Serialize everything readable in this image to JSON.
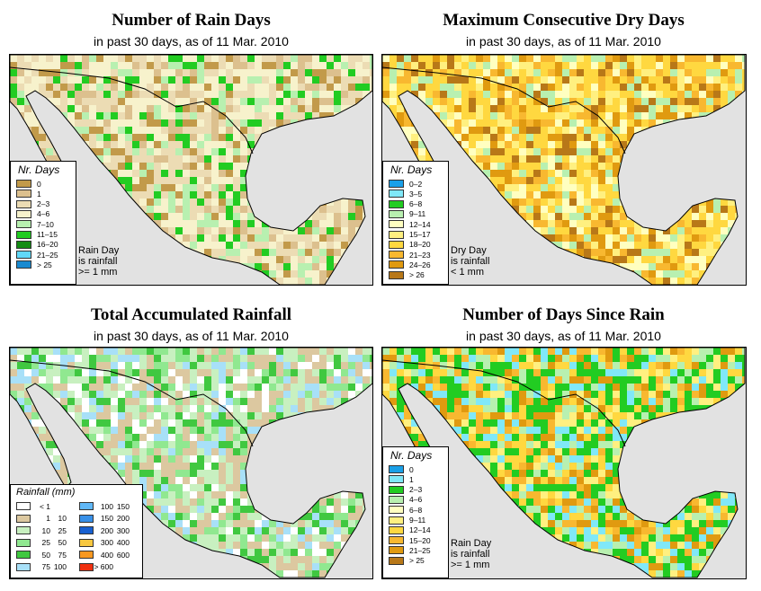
{
  "maps": [
    {
      "title": "Number of Rain Days",
      "subtitle": "in past 30 days, as of  11 Mar. 2010",
      "legend_title": "Nr. Days",
      "legend": [
        {
          "label": "0",
          "color": "#c29a4a"
        },
        {
          "label": "1",
          "color": "#dcc08e"
        },
        {
          "label": "2–3",
          "color": "#ecdcb4"
        },
        {
          "label": "4–6",
          "color": "#f7f2cc"
        },
        {
          "label": "7–10",
          "color": "#b8f0b0"
        },
        {
          "label": "11–15",
          "color": "#22cc22"
        },
        {
          "label": "16–20",
          "color": "#148c14"
        },
        {
          "label": "21–25",
          "color": "#60d8f8"
        },
        {
          "label": "> 25",
          "color": "#1a8ad0"
        }
      ],
      "note": [
        "Rain Day",
        "is rainfall",
        ">= 1 mm"
      ],
      "palette": [
        "#f7f2cc",
        "#ecdcb4",
        "#dcc08e",
        "#f7f2cc",
        "#ecdcb4",
        "#c29a4a",
        "#b8f0b0",
        "#22cc22"
      ]
    },
    {
      "title": "Maximum Consecutive Dry Days",
      "subtitle": "in past 30 days, as of  11 Mar. 2010",
      "legend_title": "Nr. Days",
      "legend": [
        {
          "label": "0–2",
          "color": "#1aa0e8"
        },
        {
          "label": "3–5",
          "color": "#80e8f8"
        },
        {
          "label": "6–8",
          "color": "#22cc22"
        },
        {
          "label": "9–11",
          "color": "#b8f0b0"
        },
        {
          "label": "12–14",
          "color": "#ffffc0"
        },
        {
          "label": "15–17",
          "color": "#fff080"
        },
        {
          "label": "18–20",
          "color": "#ffd840"
        },
        {
          "label": "21–23",
          "color": "#f8b830"
        },
        {
          "label": "24–26",
          "color": "#e09a10"
        },
        {
          "label": "> 26",
          "color": "#b87818"
        }
      ],
      "note": [
        "Dry Day",
        "is rainfall",
        "< 1 mm"
      ],
      "palette": [
        "#ffd840",
        "#f8b830",
        "#fff080",
        "#ffd840",
        "#e09a10",
        "#ffffc0",
        "#b87818",
        "#b8f0b0"
      ]
    },
    {
      "title": "Total Accumulated Rainfall",
      "subtitle": "in past 30 days, as of  11 Mar. 2010",
      "legend_title": "Rainfall (mm)",
      "rain_legend": [
        {
          "lo": "< 1",
          "hi": "",
          "color": "#ffffff"
        },
        {
          "lo": "1",
          "hi": "10",
          "color": "#dcc8a0"
        },
        {
          "lo": "10",
          "hi": "25",
          "color": "#c8f0c0"
        },
        {
          "lo": "25",
          "hi": "50",
          "color": "#90e890"
        },
        {
          "lo": "50",
          "hi": "75",
          "color": "#40c840"
        },
        {
          "lo": "75",
          "hi": "100",
          "color": "#a8e0f8"
        },
        {
          "lo": "100",
          "hi": "150",
          "color": "#60b8f8"
        },
        {
          "lo": "150",
          "hi": "200",
          "color": "#3890e8"
        },
        {
          "lo": "200",
          "hi": "300",
          "color": "#1860d0"
        },
        {
          "lo": "300",
          "hi": "400",
          "color": "#f8c840"
        },
        {
          "lo": "400",
          "hi": "600",
          "color": "#f89820"
        },
        {
          "lo": "> 600",
          "hi": "",
          "color": "#f03010"
        }
      ],
      "palette": [
        "#c8f0c0",
        "#dcc8a0",
        "#90e890",
        "#c8f0c0",
        "#40c840",
        "#ffffff",
        "#dcc8a0",
        "#a8e0f8"
      ]
    },
    {
      "title": "Number of Days Since Rain",
      "subtitle": "in past 30 days, as of  11 Mar. 2010",
      "legend_title": "Nr. Days",
      "legend": [
        {
          "label": "0",
          "color": "#1aa0e8"
        },
        {
          "label": "1",
          "color": "#80e8f8"
        },
        {
          "label": "2–3",
          "color": "#22cc22"
        },
        {
          "label": "4–6",
          "color": "#b8f0b0"
        },
        {
          "label": "6–8",
          "color": "#ffffc0"
        },
        {
          "label": "9–11",
          "color": "#fff080"
        },
        {
          "label": "12–14",
          "color": "#ffd840"
        },
        {
          "label": "15–20",
          "color": "#f8b830"
        },
        {
          "label": "21–25",
          "color": "#e09a10"
        },
        {
          "label": "> 25",
          "color": "#b87818"
        }
      ],
      "note": [
        "Rain Day",
        "is rainfall",
        ">= 1 mm"
      ],
      "palette": [
        "#22cc22",
        "#b8f0b0",
        "#ffd840",
        "#22cc22",
        "#f8b830",
        "#fff080",
        "#80e8f8",
        "#e09a10"
      ]
    }
  ]
}
